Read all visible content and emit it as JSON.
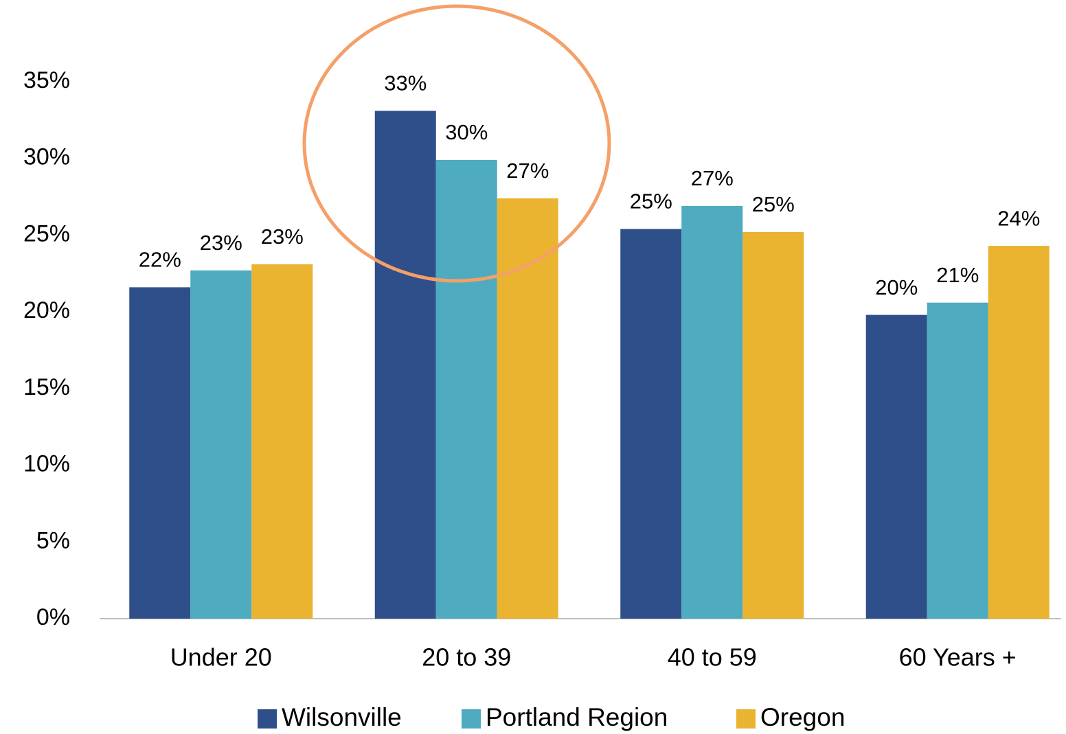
{
  "chart_data": {
    "type": "bar",
    "categories": [
      "Under 20",
      "20 to 39",
      "40 to 59",
      "60 Years +"
    ],
    "series": [
      {
        "name": "Wilsonville",
        "color": "#2e4f8a",
        "values": [
          21.6,
          33.1,
          25.4,
          19.8
        ],
        "value_labels": [
          "22%",
          "33%",
          "25%",
          "20%"
        ]
      },
      {
        "name": "Portland Region",
        "color": "#4fabbf",
        "values": [
          22.7,
          29.9,
          26.9,
          20.6
        ],
        "value_labels": [
          "23%",
          "30%",
          "27%",
          "21%"
        ]
      },
      {
        "name": "Oregon",
        "color": "#eab330",
        "values": [
          23.1,
          27.4,
          25.2,
          24.3
        ],
        "value_labels": [
          "23%",
          "27%",
          "25%",
          "24%"
        ]
      }
    ],
    "ylim": [
      0,
      35
    ],
    "yticks": [
      {
        "value": 0,
        "label": "0%"
      },
      {
        "value": 5,
        "label": "5%"
      },
      {
        "value": 10,
        "label": "10%"
      },
      {
        "value": 15,
        "label": "15%"
      },
      {
        "value": 20,
        "label": "20%"
      },
      {
        "value": 25,
        "label": "25%"
      },
      {
        "value": 30,
        "label": "30%"
      },
      {
        "value": 35,
        "label": "35%"
      }
    ],
    "grid": false,
    "legend": "bottom"
  }
}
